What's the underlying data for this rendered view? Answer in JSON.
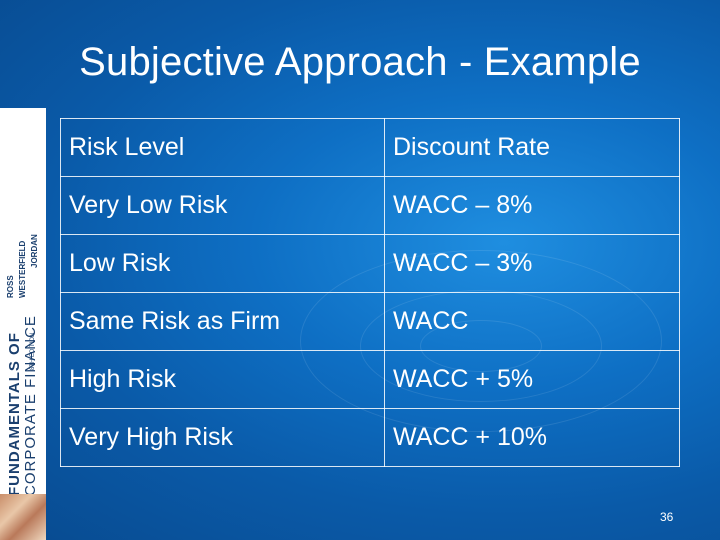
{
  "slide": {
    "title": "Subjective Approach - Example",
    "page_number": "36"
  },
  "book_cover": {
    "title_line1": "FUNDAMENTALS OF",
    "title_line2": "CORPORATE FINANCE",
    "authors": [
      "ROSS",
      "WESTERFIELD",
      "JORDAN"
    ],
    "edition": "8TH EDITION"
  },
  "table": {
    "header": [
      "Risk Level",
      "Discount Rate"
    ],
    "rows": [
      [
        "Very Low Risk",
        "WACC – 8%"
      ],
      [
        "Low Risk",
        "WACC – 3%"
      ],
      [
        "Same Risk as Firm",
        "WACC"
      ],
      [
        "High Risk",
        "WACC + 5%"
      ],
      [
        "Very High Risk",
        "WACC + 10%"
      ]
    ]
  },
  "colors": {
    "background": "#0e6fc4",
    "text": "#ffffff",
    "spine_text": "#1a3f6e"
  }
}
